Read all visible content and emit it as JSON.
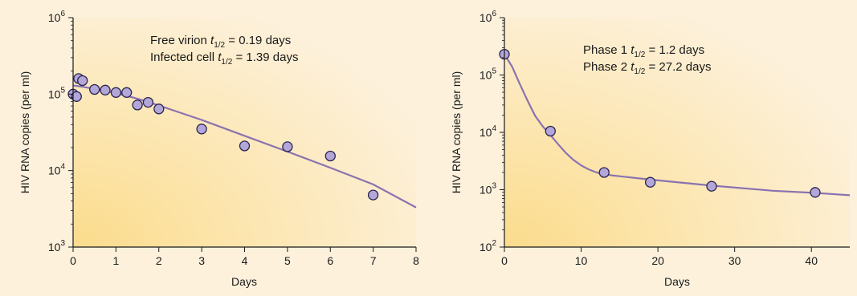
{
  "colors": {
    "background": "#fdf1dc",
    "plot_bg_light": "#fdf1dc",
    "plot_bg_warm": "#fbdc8c",
    "curve": "#8a72b0",
    "marker_fill": "#b3a6d8",
    "marker_edge": "#2a2450",
    "axis": "#1a1a1a"
  },
  "chart_data": [
    {
      "type": "scatter",
      "xlabel": "Days",
      "ylabel": "HIV RNA copies (per ml)",
      "xlim": [
        0,
        8
      ],
      "ylim": [
        1000,
        1000000
      ],
      "y_scale": "log",
      "grid": false,
      "x_ticks": [
        "0",
        "1",
        "2",
        "3",
        "4",
        "5",
        "6",
        "7",
        "8"
      ],
      "y_ticks": [
        {
          "base": "10",
          "exp": "3"
        },
        {
          "base": "10",
          "exp": "4"
        },
        {
          "base": "10",
          "exp": "5"
        },
        {
          "base": "10",
          "exp": "6"
        }
      ],
      "annotations": [
        {
          "lead": "Free virion ",
          "var": "t",
          "sub": "1/2",
          "tail": " = 0.19 days"
        },
        {
          "lead": "Infected cell ",
          "var": "t",
          "sub": "1/2",
          "tail": " = 1.39 days"
        }
      ],
      "points": {
        "x": [
          0,
          0.08,
          0.13,
          0.22,
          0.5,
          0.75,
          1,
          1.25,
          1.5,
          1.75,
          2,
          3,
          4,
          5,
          6,
          7
        ],
        "y": [
          100000,
          93000,
          160000,
          150000,
          115000,
          113000,
          105000,
          105000,
          72000,
          78000,
          64000,
          35000,
          21000,
          20500,
          15500,
          4800
        ]
      },
      "fit": {
        "x": [
          0,
          0.25,
          0.5,
          0.75,
          1,
          1.25,
          1.5,
          1.75,
          2,
          3,
          4,
          5,
          6,
          7,
          8
        ],
        "y": [
          130000,
          124000,
          117000,
          110000,
          103000,
          95000,
          87000,
          79000,
          71000,
          46000,
          28500,
          17700,
          10900,
          6600,
          3300
        ]
      }
    },
    {
      "type": "scatter",
      "xlabel": "Days",
      "ylabel": "HIV RNA copies (per ml)",
      "xlim": [
        0,
        45
      ],
      "ylim": [
        100,
        1000000
      ],
      "y_scale": "log",
      "grid": false,
      "x_ticks": [
        "0",
        "10",
        "20",
        "30",
        "40"
      ],
      "x_tick_values": [
        0,
        10,
        20,
        30,
        40
      ],
      "y_ticks": [
        {
          "base": "10",
          "exp": "2"
        },
        {
          "base": "10",
          "exp": "3"
        },
        {
          "base": "10",
          "exp": "4"
        },
        {
          "base": "10",
          "exp": "5"
        },
        {
          "base": "10",
          "exp": "6"
        }
      ],
      "annotations": [
        {
          "lead": "Phase 1 ",
          "var": "t",
          "sub": "1/2",
          "tail": " = 1.2 days"
        },
        {
          "lead": "Phase 2 ",
          "var": "t",
          "sub": "1/2",
          "tail": " = 27.2 days"
        }
      ],
      "points": {
        "x": [
          0,
          6,
          13,
          19,
          27,
          40.5
        ],
        "y": [
          230000,
          10500,
          2000,
          1350,
          1150,
          900
        ]
      },
      "fit": {
        "x": [
          0,
          1,
          2,
          3,
          4,
          5,
          6,
          7,
          8,
          9,
          10,
          11,
          12,
          13,
          15,
          19,
          27,
          35,
          40.5,
          45
        ],
        "y": [
          230000,
          140000,
          70000,
          36000,
          19500,
          12700,
          9000,
          6200,
          4400,
          3300,
          2650,
          2250,
          2000,
          1850,
          1720,
          1500,
          1180,
          960,
          880,
          800
        ]
      }
    }
  ]
}
